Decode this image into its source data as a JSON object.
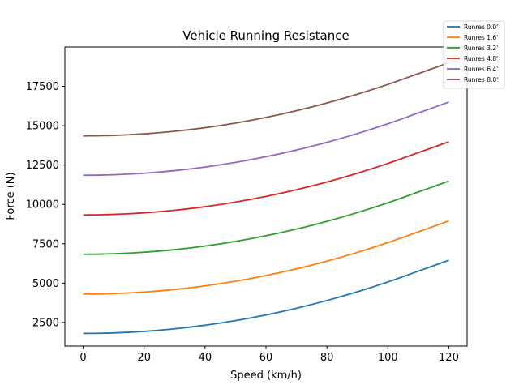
{
  "chart_data": {
    "type": "line",
    "title": "Vehicle Running Resistance",
    "xlabel": "Speed (km/h)",
    "ylabel": "Force (N)",
    "xlim": [
      -6,
      126
    ],
    "ylim": [
      1000,
      20000
    ],
    "x_ticks": [
      0,
      20,
      40,
      60,
      80,
      100,
      120
    ],
    "y_ticks": [
      2500,
      5000,
      7500,
      10000,
      12500,
      15000,
      17500
    ],
    "grid": false,
    "legend_position": "top-right outside",
    "x": [
      0,
      10,
      20,
      30,
      40,
      50,
      60,
      70,
      80,
      90,
      100,
      110,
      120
    ],
    "series": [
      {
        "name": "Runres 0.0'",
        "color": "#1f77b4",
        "values": [
          1800,
          1833,
          1930,
          2094,
          2323,
          2617,
          2977,
          3402,
          3893,
          4450,
          5072,
          5759,
          6450
        ]
      },
      {
        "name": "Runres 1.6'",
        "color": "#ff7f0e",
        "values": [
          4300,
          4333,
          4430,
          4594,
          4823,
          5117,
          5477,
          5902,
          6393,
          6950,
          7572,
          8259,
          8950
        ]
      },
      {
        "name": "Runres 3.2'",
        "color": "#2ca02c",
        "values": [
          6830,
          6863,
          6960,
          7124,
          7353,
          7647,
          8007,
          8432,
          8923,
          9480,
          10102,
          10789,
          11480
        ]
      },
      {
        "name": "Runres 4.8'",
        "color": "#d62728",
        "values": [
          9330,
          9363,
          9460,
          9624,
          9853,
          10147,
          10507,
          10932,
          11423,
          11980,
          12602,
          13289,
          13980
        ]
      },
      {
        "name": "Runres 6.4'",
        "color": "#9467bd",
        "values": [
          11850,
          11883,
          11980,
          12144,
          12373,
          12667,
          13027,
          13452,
          13943,
          14500,
          15122,
          15809,
          16500
        ]
      },
      {
        "name": "Runres 8.0'",
        "color": "#8c564b",
        "values": [
          14350,
          14383,
          14480,
          14644,
          14873,
          15167,
          15527,
          15952,
          16443,
          17000,
          17622,
          18309,
          19000
        ]
      }
    ]
  }
}
